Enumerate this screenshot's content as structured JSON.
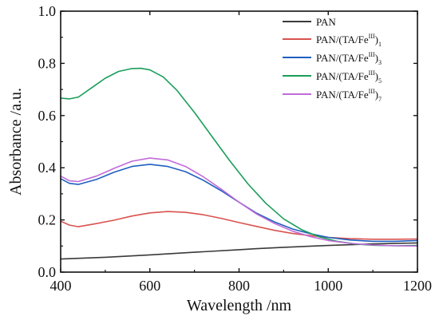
{
  "chart_data": {
    "type": "line",
    "title": "",
    "xlabel": "Wavelength /nm",
    "ylabel": "Absorbance /a.u.",
    "xlim": [
      400,
      1200
    ],
    "ylim": [
      0.0,
      1.0
    ],
    "xticks": [
      400,
      600,
      800,
      1000,
      1200
    ],
    "xtick_labels": [
      "400",
      "600",
      "800",
      "1000",
      "1200"
    ],
    "yticks": [
      0.0,
      0.2,
      0.4,
      0.6,
      0.8,
      1.0
    ],
    "ytick_labels": [
      "0.0",
      "0.2",
      "0.4",
      "0.6",
      "0.8",
      "1.0"
    ],
    "legend_position": "top-right",
    "grid": false,
    "series": [
      {
        "name": "PAN",
        "legend_base": "PAN",
        "legend_sup": "",
        "legend_tail": "",
        "legend_sub": "",
        "color": "#3a3a3a",
        "x": [
          400,
          500,
          600,
          700,
          800,
          840,
          900,
          1000,
          1100,
          1200
        ],
        "y": [
          0.05,
          0.057,
          0.066,
          0.076,
          0.086,
          0.09,
          0.095,
          0.102,
          0.108,
          0.112
        ]
      },
      {
        "name": "PAN/(TA/Fe^III)1",
        "legend_base": "PAN/(TA/Fe",
        "legend_sup": "III",
        "legend_tail": ")",
        "legend_sub": "1",
        "color": "#d9534f",
        "x": [
          400,
          420,
          440,
          480,
          520,
          560,
          600,
          640,
          680,
          720,
          760,
          800,
          840,
          880,
          920,
          960,
          1000,
          1050,
          1100,
          1150,
          1200
        ],
        "y": [
          0.195,
          0.18,
          0.174,
          0.186,
          0.199,
          0.215,
          0.227,
          0.232,
          0.229,
          0.22,
          0.206,
          0.19,
          0.175,
          0.16,
          0.148,
          0.14,
          0.133,
          0.128,
          0.126,
          0.126,
          0.127
        ]
      },
      {
        "name": "PAN/(TA/Fe^III)3",
        "legend_base": "PAN/(TA/Fe",
        "legend_sup": "III",
        "legend_tail": ")",
        "legend_sub": "3",
        "color": "#1f5fbf",
        "x": [
          400,
          420,
          440,
          480,
          520,
          560,
          600,
          640,
          680,
          720,
          760,
          800,
          840,
          880,
          920,
          960,
          1000,
          1050,
          1100,
          1150,
          1200
        ],
        "y": [
          0.358,
          0.34,
          0.336,
          0.355,
          0.383,
          0.405,
          0.413,
          0.405,
          0.385,
          0.352,
          0.312,
          0.268,
          0.225,
          0.192,
          0.165,
          0.147,
          0.133,
          0.123,
          0.118,
          0.118,
          0.121
        ]
      },
      {
        "name": "PAN/(TA/Fe^III)5",
        "legend_base": "PAN/(TA/Fe",
        "legend_sup": "III",
        "legend_tail": ")",
        "legend_sub": "5",
        "color": "#1a9e5a",
        "x": [
          400,
          420,
          440,
          470,
          500,
          530,
          560,
          580,
          600,
          630,
          660,
          700,
          740,
          780,
          820,
          860,
          900,
          940,
          980,
          1020,
          1060,
          1100,
          1150,
          1200
        ],
        "y": [
          0.667,
          0.664,
          0.671,
          0.707,
          0.743,
          0.769,
          0.78,
          0.781,
          0.775,
          0.748,
          0.698,
          0.612,
          0.518,
          0.425,
          0.338,
          0.264,
          0.204,
          0.163,
          0.135,
          0.118,
          0.108,
          0.103,
          0.101,
          0.102
        ]
      },
      {
        "name": "PAN/(TA/Fe^III)7",
        "legend_base": "PAN/(TA/Fe",
        "legend_sup": "III",
        "legend_tail": ")",
        "legend_sub": "7",
        "color": "#c06ad8",
        "x": [
          400,
          420,
          440,
          480,
          520,
          560,
          600,
          640,
          680,
          720,
          760,
          800,
          840,
          880,
          920,
          960,
          1000,
          1050,
          1100,
          1150,
          1200
        ],
        "y": [
          0.368,
          0.35,
          0.347,
          0.368,
          0.398,
          0.425,
          0.437,
          0.43,
          0.405,
          0.365,
          0.318,
          0.268,
          0.222,
          0.186,
          0.157,
          0.136,
          0.121,
          0.11,
          0.104,
          0.101,
          0.1
        ]
      }
    ]
  }
}
